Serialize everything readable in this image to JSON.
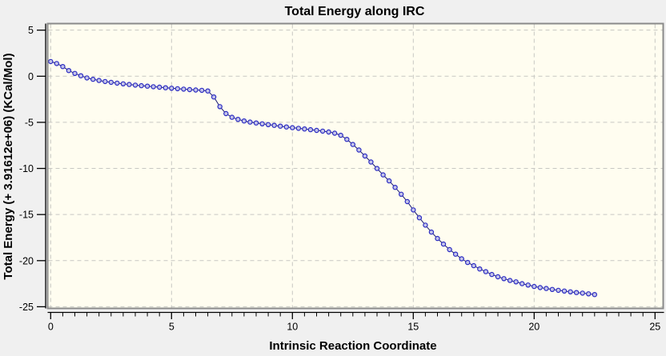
{
  "window": {
    "background_color": "#f0f0f0"
  },
  "chart_data": {
    "type": "scatter",
    "title": "Total Energy along IRC",
    "xlabel": "Intrinsic Reaction Coordinate",
    "ylabel": "Total Energy (+ 3.91612e+06) (KCal/Mol)",
    "xlim": [
      0,
      25
    ],
    "ylim": [
      -25,
      5
    ],
    "x_major_ticks": [
      0,
      5,
      10,
      15,
      20,
      25
    ],
    "x_minor_tick_step": 0.5,
    "y_major_ticks": [
      5,
      0,
      -5,
      -10,
      -15,
      -20,
      -25
    ],
    "grid": {
      "on": true,
      "style": "dashed",
      "color": "#c7c7c2"
    },
    "legend_position": "none",
    "colors": {
      "plot_background": "#fffdf0",
      "frame": "#8a8a8a",
      "axis": "#000000",
      "line": "#1a1a72",
      "marker_border": "#2b2bc2",
      "marker_fill": "#c4c4e8"
    },
    "series": [
      {
        "name": "Total Energy",
        "points": [
          [
            0,
            1.6
          ],
          [
            0.25,
            1.38
          ],
          [
            0.5,
            1.05
          ],
          [
            0.75,
            0.62
          ],
          [
            1,
            0.3
          ],
          [
            1.25,
            0.05
          ],
          [
            1.5,
            -0.18
          ],
          [
            1.75,
            -0.33
          ],
          [
            2,
            -0.46
          ],
          [
            2.25,
            -0.57
          ],
          [
            2.5,
            -0.66
          ],
          [
            2.75,
            -0.75
          ],
          [
            3,
            -0.82
          ],
          [
            3.25,
            -0.89
          ],
          [
            3.5,
            -0.96
          ],
          [
            3.75,
            -1.02
          ],
          [
            4,
            -1.08
          ],
          [
            4.25,
            -1.14
          ],
          [
            4.5,
            -1.19
          ],
          [
            4.75,
            -1.25
          ],
          [
            5,
            -1.3
          ],
          [
            5.25,
            -1.35
          ],
          [
            5.5,
            -1.4
          ],
          [
            5.75,
            -1.45
          ],
          [
            6,
            -1.49
          ],
          [
            6.25,
            -1.53
          ],
          [
            6.5,
            -1.6
          ],
          [
            6.75,
            -2.25
          ],
          [
            7,
            -3.3
          ],
          [
            7.25,
            -4.05
          ],
          [
            7.5,
            -4.45
          ],
          [
            7.75,
            -4.68
          ],
          [
            8,
            -4.85
          ],
          [
            8.25,
            -4.97
          ],
          [
            8.5,
            -5.07
          ],
          [
            8.75,
            -5.16
          ],
          [
            9,
            -5.25
          ],
          [
            9.25,
            -5.33
          ],
          [
            9.5,
            -5.41
          ],
          [
            9.75,
            -5.5
          ],
          [
            10,
            -5.58
          ],
          [
            10.25,
            -5.65
          ],
          [
            10.5,
            -5.72
          ],
          [
            10.75,
            -5.8
          ],
          [
            11,
            -5.87
          ],
          [
            11.25,
            -5.95
          ],
          [
            11.5,
            -6.05
          ],
          [
            11.75,
            -6.18
          ],
          [
            12,
            -6.4
          ],
          [
            12.25,
            -6.85
          ],
          [
            12.5,
            -7.4
          ],
          [
            12.75,
            -8
          ],
          [
            13,
            -8.65
          ],
          [
            13.25,
            -9.3
          ],
          [
            13.5,
            -10
          ],
          [
            13.75,
            -10.7
          ],
          [
            14,
            -11.35
          ],
          [
            14.25,
            -12.05
          ],
          [
            14.5,
            -12.8
          ],
          [
            14.75,
            -13.6
          ],
          [
            15,
            -14.5
          ],
          [
            15.25,
            -15.35
          ],
          [
            15.5,
            -16.15
          ],
          [
            15.75,
            -16.9
          ],
          [
            16,
            -17.6
          ],
          [
            16.25,
            -18.2
          ],
          [
            16.5,
            -18.8
          ],
          [
            16.75,
            -19.3
          ],
          [
            17,
            -19.8
          ],
          [
            17.25,
            -20.2
          ],
          [
            17.5,
            -20.55
          ],
          [
            17.75,
            -20.9
          ],
          [
            18,
            -21.2
          ],
          [
            18.25,
            -21.5
          ],
          [
            18.5,
            -21.75
          ],
          [
            18.75,
            -21.95
          ],
          [
            19,
            -22.15
          ],
          [
            19.25,
            -22.3
          ],
          [
            19.5,
            -22.5
          ],
          [
            19.75,
            -22.65
          ],
          [
            20,
            -22.8
          ],
          [
            20.25,
            -22.92
          ],
          [
            20.5,
            -23.02
          ],
          [
            20.75,
            -23.12
          ],
          [
            21,
            -23.22
          ],
          [
            21.25,
            -23.3
          ],
          [
            21.5,
            -23.38
          ],
          [
            21.75,
            -23.46
          ],
          [
            22,
            -23.52
          ],
          [
            22.25,
            -23.6
          ],
          [
            22.5,
            -23.68
          ]
        ]
      }
    ]
  }
}
